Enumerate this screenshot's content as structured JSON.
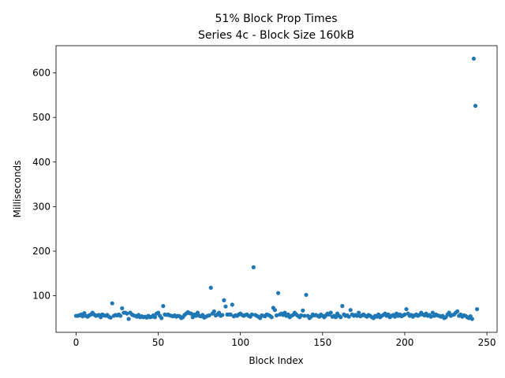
{
  "chart_data": {
    "type": "scatter",
    "title": "51% Block Prop Times",
    "subtitle": "Series 4c - Block Size 160kB",
    "x_label": "Block Index",
    "y_label": "Milliseconds",
    "color": "#1f77b4",
    "x": [
      0,
      1,
      2,
      3,
      4,
      5,
      6,
      7,
      8,
      9,
      10,
      11,
      12,
      13,
      14,
      15,
      16,
      17,
      18,
      19,
      20,
      21,
      22,
      23,
      24,
      25,
      26,
      27,
      28,
      29,
      30,
      31,
      32,
      33,
      34,
      35,
      36,
      37,
      38,
      39,
      40,
      41,
      42,
      43,
      44,
      45,
      46,
      47,
      48,
      49,
      50,
      51,
      52,
      53,
      54,
      55,
      56,
      57,
      58,
      59,
      60,
      61,
      62,
      63,
      64,
      65,
      66,
      67,
      68,
      69,
      70,
      71,
      72,
      73,
      74,
      75,
      76,
      77,
      78,
      79,
      80,
      81,
      82,
      83,
      84,
      85,
      86,
      87,
      88,
      89,
      90,
      91,
      92,
      93,
      94,
      95,
      96,
      97,
      98,
      99,
      100,
      101,
      102,
      103,
      104,
      105,
      106,
      107,
      108,
      109,
      110,
      111,
      112,
      113,
      114,
      115,
      116,
      117,
      118,
      119,
      120,
      121,
      122,
      123,
      124,
      125,
      126,
      127,
      128,
      129,
      130,
      131,
      132,
      133,
      134,
      135,
      136,
      137,
      138,
      139,
      140,
      141,
      142,
      143,
      144,
      145,
      146,
      147,
      148,
      149,
      150,
      151,
      152,
      153,
      154,
      155,
      156,
      157,
      158,
      159,
      160,
      161,
      162,
      163,
      164,
      165,
      166,
      167,
      168,
      169,
      170,
      171,
      172,
      173,
      174,
      175,
      176,
      177,
      178,
      179,
      180,
      181,
      182,
      183,
      184,
      185,
      186,
      187,
      188,
      189,
      190,
      191,
      192,
      193,
      194,
      195,
      196,
      197,
      198,
      199,
      200,
      201,
      202,
      203,
      204,
      205,
      206,
      207,
      208,
      209,
      210,
      211,
      212,
      213,
      214,
      215,
      216,
      217,
      218,
      219,
      220,
      221,
      222,
      223,
      224,
      225,
      226,
      227,
      228,
      229,
      230,
      231,
      232,
      233,
      234,
      235,
      236,
      237,
      238,
      239,
      240,
      241,
      242,
      243,
      244
    ],
    "values": [
      55,
      55,
      56,
      58,
      54,
      61,
      55,
      53,
      56,
      58,
      62,
      58,
      55,
      56,
      57,
      52,
      58,
      56,
      55,
      57,
      53,
      51,
      83,
      55,
      57,
      56,
      58,
      55,
      72,
      62,
      62,
      60,
      48,
      62,
      58,
      56,
      55,
      53,
      57,
      52,
      54,
      52,
      53,
      51,
      55,
      52,
      53,
      56,
      52,
      60,
      62,
      55,
      50,
      77,
      58,
      57,
      58,
      56,
      55,
      54,
      56,
      53,
      55,
      54,
      50,
      52,
      57,
      60,
      63,
      61,
      60,
      52,
      58,
      55,
      62,
      55,
      54,
      57,
      51,
      53,
      55,
      56,
      118,
      60,
      65,
      56,
      58,
      62,
      55,
      57,
      90,
      76,
      58,
      58,
      58,
      80,
      54,
      56,
      55,
      58,
      60,
      57,
      55,
      57,
      58,
      55,
      53,
      58,
      164,
      57,
      55,
      53,
      50,
      56,
      55,
      54,
      58,
      57,
      55,
      52,
      73,
      68,
      56,
      106,
      58,
      60,
      57,
      62,
      55,
      58,
      52,
      55,
      57,
      62,
      58,
      55,
      52,
      56,
      67,
      55,
      102,
      55,
      50,
      53,
      58,
      56,
      57,
      55,
      53,
      58,
      55,
      52,
      56,
      60,
      58,
      62,
      53,
      55,
      52,
      60,
      55,
      52,
      77,
      58,
      55,
      56,
      53,
      68,
      58,
      55,
      57,
      55,
      62,
      54,
      56,
      58,
      55,
      53,
      57,
      55,
      52,
      50,
      55,
      53,
      58,
      52,
      55,
      57,
      60,
      55,
      58,
      52,
      55,
      57,
      53,
      60,
      55,
      58,
      54,
      56,
      58,
      70,
      60,
      55,
      57,
      53,
      56,
      58,
      55,
      57,
      62,
      58,
      56,
      60,
      55,
      57,
      53,
      62,
      55,
      58,
      56,
      55,
      53,
      55,
      50,
      52,
      58,
      62,
      55,
      57,
      58,
      62,
      65,
      55,
      58,
      53,
      56,
      55,
      52,
      50,
      54,
      48,
      632,
      526,
      70
    ],
    "xlim": [
      -12.2,
      256.2
    ],
    "ylim": [
      18,
      661
    ],
    "xticks": [
      0,
      50,
      100,
      150,
      200,
      250
    ],
    "yticks": [
      100,
      200,
      300,
      400,
      500,
      600
    ]
  }
}
